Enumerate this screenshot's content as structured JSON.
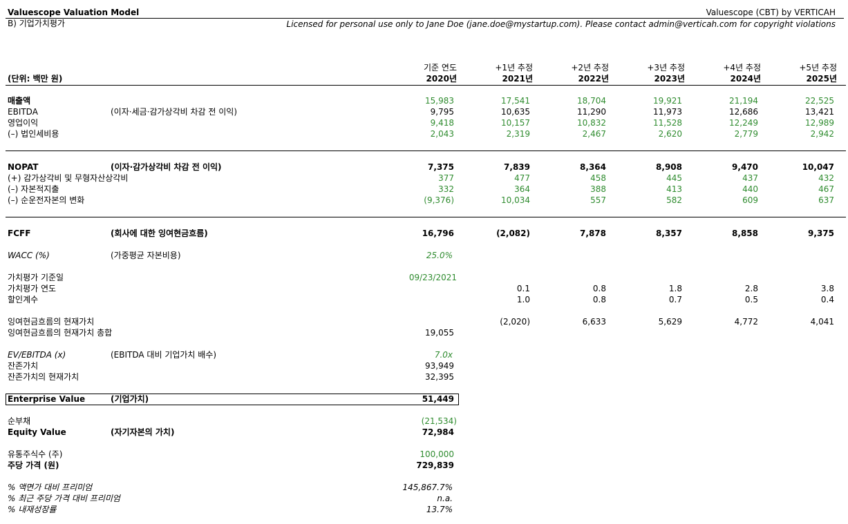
{
  "header": {
    "title": "Valuescope Valuation Model",
    "brand": "Valuescope (CBT) by VERTICAH",
    "section": "B) 기업가치평가",
    "license": "Licensed for personal use only to Jane Doe (jane.doe@mystartup.com). Please contact admin@verticah.com for copyright violations",
    "unit": "(단위: 백만 원)"
  },
  "columns": [
    {
      "top": "기준 연도",
      "year": "2020년"
    },
    {
      "top": "+1년 추정",
      "year": "2021년"
    },
    {
      "top": "+2년 추정",
      "year": "2022년"
    },
    {
      "top": "+3년 추정",
      "year": "2023년"
    },
    {
      "top": "+4년 추정",
      "year": "2024년"
    },
    {
      "top": "+5년 추정",
      "year": "2025년"
    }
  ],
  "rows": {
    "revenue": {
      "label": "매출액",
      "desc": "",
      "values": [
        "15,983",
        "17,541",
        "18,704",
        "19,921",
        "21,194",
        "22,525"
      ]
    },
    "ebitda": {
      "label": "EBITDA",
      "desc": "(이자·세금·감가상각비 차감 전 이익)",
      "values": [
        "9,795",
        "10,635",
        "11,290",
        "11,973",
        "12,686",
        "13,421"
      ]
    },
    "op_income": {
      "label": "영업이익",
      "desc": "",
      "values": [
        "9,418",
        "10,157",
        "10,832",
        "11,528",
        "12,249",
        "12,989"
      ]
    },
    "tax": {
      "label": "(–) 법인세비용",
      "desc": "",
      "values": [
        "2,043",
        "2,319",
        "2,467",
        "2,620",
        "2,779",
        "2,942"
      ]
    },
    "nopat": {
      "label": "NOPAT",
      "desc": "(이자·감가상각비 차감 전 이익)",
      "values": [
        "7,375",
        "7,839",
        "8,364",
        "8,908",
        "9,470",
        "10,047"
      ]
    },
    "da": {
      "label": "(+) 감가상각비 및 무형자산상각비",
      "desc": "",
      "values": [
        "377",
        "477",
        "458",
        "445",
        "437",
        "432"
      ]
    },
    "capex": {
      "label": "(–) 자본적지출",
      "desc": "",
      "values": [
        "332",
        "364",
        "388",
        "413",
        "440",
        "467"
      ]
    },
    "nwc": {
      "label": "(–) 순운전자본의 변화",
      "desc": "",
      "values": [
        "(9,376)",
        "10,034",
        "557",
        "582",
        "609",
        "637"
      ]
    },
    "fcff": {
      "label": "FCFF",
      "desc": "(회사에 대한 잉여현금흐름)",
      "values": [
        "16,796",
        "(2,082)",
        "7,878",
        "8,357",
        "8,858",
        "9,375"
      ]
    }
  },
  "wacc": {
    "label": "WACC (%)",
    "desc": "(가중평균 자본비용)",
    "value": "25.0%"
  },
  "valuation": {
    "date_label": "가치평가 기준일",
    "date_value": "09/23/2021",
    "year_label": "가치평가 연도",
    "year_values": [
      "0.1",
      "0.8",
      "1.8",
      "2.8",
      "3.8"
    ],
    "discount_label": "할인계수",
    "discount_values": [
      "1.0",
      "0.8",
      "0.7",
      "0.5",
      "0.4"
    ],
    "pv_label": "잉여현금흐름의 현재가치",
    "pv_values": [
      "(2,020)",
      "6,633",
      "5,629",
      "4,772",
      "4,041"
    ],
    "pv_sum_label": "잉여현금흐름의 현재가치 총합",
    "pv_sum_value": "19,055",
    "ev_ebitda_label": "EV/EBITDA (x)",
    "ev_ebitda_desc": "(EBITDA 대비 기업가치 배수)",
    "ev_ebitda_value": "7.0x",
    "terminal_label": "잔존가치",
    "terminal_value": "93,949",
    "terminal_pv_label": "잔존가치의 현재가치",
    "terminal_pv_value": "32,395",
    "ev_label": "Enterprise Value",
    "ev_desc": "(기업가치)",
    "ev_value": "51,449",
    "net_debt_label": "순부채",
    "net_debt_value": "(21,534)",
    "equity_label": "Equity Value",
    "equity_desc": "(자기자본의 가치)",
    "equity_value": "72,984",
    "shares_label": "유통주식수 (주)",
    "shares_value": "100,000",
    "price_label": "주당 가격 (원)",
    "price_value": "729,839",
    "premium_par_label": "% 액면가 대비 프리미엄",
    "premium_par_value": "145,867.7%",
    "premium_recent_label": "% 최근 주당 가격 대비 프리미엄",
    "premium_recent_value": "n.a.",
    "irr_label": "% 내재성장률",
    "irr_value": "13.7%"
  }
}
